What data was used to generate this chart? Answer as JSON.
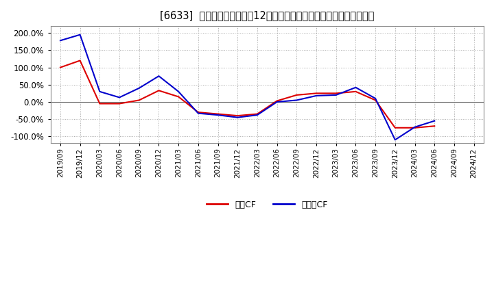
{
  "title": "[6633]  キャッシュフローの12か月移動合計の対前年同期増減率の推移",
  "ylim": [
    -120,
    220
  ],
  "yticks": [
    -100,
    -50,
    0,
    50,
    100,
    150,
    200
  ],
  "background_color": "#ffffff",
  "plot_bg_color": "#ffffff",
  "grid_color": "#aaaaaa",
  "legend_labels": [
    "営業CF",
    "フリーCF"
  ],
  "line_colors": [
    "#dd0000",
    "#0000cc"
  ],
  "x_labels": [
    "2019/09",
    "2019/12",
    "2020/03",
    "2020/06",
    "2020/09",
    "2020/12",
    "2021/03",
    "2021/06",
    "2021/09",
    "2021/12",
    "2022/03",
    "2022/06",
    "2022/09",
    "2022/12",
    "2023/03",
    "2023/06",
    "2023/09",
    "2023/12",
    "2024/03",
    "2024/06",
    "2024/09",
    "2024/12"
  ],
  "operating_cf": [
    100,
    120,
    -5,
    -5,
    5,
    33,
    15,
    -30,
    -35,
    -40,
    -35,
    3,
    20,
    25,
    25,
    30,
    5,
    -75,
    -75,
    -70,
    null,
    null
  ],
  "free_cf": [
    178,
    195,
    30,
    13,
    40,
    75,
    30,
    -33,
    -38,
    -45,
    -38,
    0,
    5,
    18,
    20,
    42,
    10,
    -110,
    -73,
    -55,
    null,
    null
  ]
}
